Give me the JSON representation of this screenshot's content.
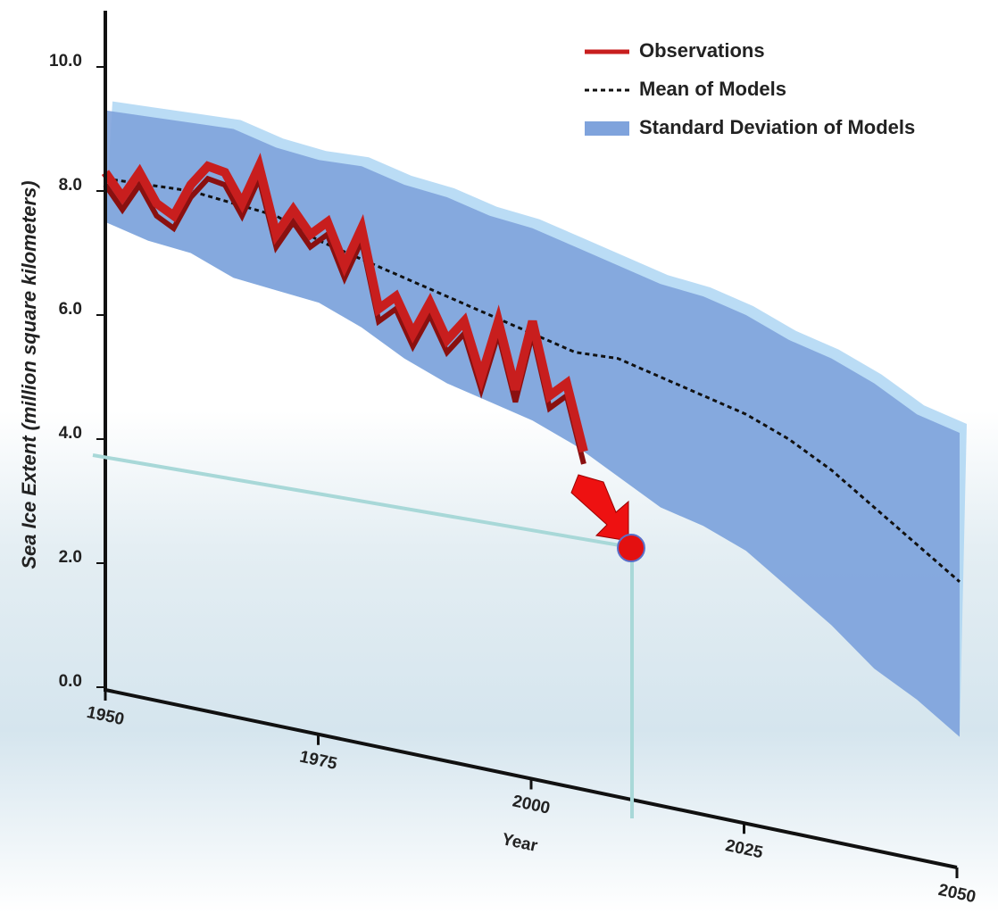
{
  "chart_data": {
    "type": "line",
    "ylabel": "Sea Ice Extent (million square kilometers)",
    "xlabel": "Year",
    "ylim": [
      0,
      10.5
    ],
    "yticks": [
      {
        "value": 0,
        "label": "0.0"
      },
      {
        "value": 2,
        "label": "2.0"
      },
      {
        "value": 4,
        "label": "4.0"
      },
      {
        "value": 6,
        "label": "6.0"
      },
      {
        "value": 8,
        "label": "8.0"
      },
      {
        "value": 10,
        "label": "10.0"
      }
    ],
    "xlim": [
      1950,
      2050
    ],
    "xticks": [
      1950,
      1975,
      2000,
      2025,
      2050
    ],
    "legend": "top-right",
    "series": [
      {
        "name": "Observations",
        "color": "#c81e1e",
        "style": "solid",
        "x": [
          1950,
          1952,
          1954,
          1956,
          1958,
          1960,
          1962,
          1964,
          1966,
          1968,
          1970,
          1972,
          1974,
          1976,
          1978,
          1980,
          1982,
          1984,
          1986,
          1988,
          1990,
          1992,
          1994,
          1996,
          1998,
          2000,
          2002,
          2004,
          2006
        ],
        "values": [
          8.3,
          7.9,
          8.3,
          7.8,
          7.6,
          8.1,
          8.4,
          8.3,
          7.8,
          8.4,
          7.3,
          7.7,
          7.3,
          7.5,
          6.8,
          7.4,
          6.1,
          6.3,
          5.7,
          6.2,
          5.6,
          5.9,
          5.0,
          5.9,
          4.8,
          5.9,
          4.7,
          4.9,
          3.8
        ]
      },
      {
        "name": "Mean of Models",
        "color": "#111111",
        "style": "dashed",
        "x": [
          1950,
          1955,
          1960,
          1965,
          1970,
          1975,
          1980,
          1985,
          1990,
          1995,
          2000,
          2005,
          2010,
          2015,
          2020,
          2025,
          2030,
          2035,
          2040,
          2045,
          2050
        ],
        "values": [
          8.2,
          8.1,
          8.0,
          7.8,
          7.6,
          7.2,
          6.9,
          6.6,
          6.3,
          6.0,
          5.7,
          5.4,
          5.3,
          5.0,
          4.7,
          4.4,
          4.0,
          3.5,
          2.9,
          2.3,
          1.7
        ]
      },
      {
        "name": "Standard Deviation of Models",
        "color": "#7fa3dc",
        "style": "band",
        "x": [
          1950,
          1955,
          1960,
          1965,
          1970,
          1975,
          1980,
          1985,
          1990,
          1995,
          2000,
          2005,
          2010,
          2015,
          2020,
          2025,
          2030,
          2035,
          2040,
          2045,
          2050
        ],
        "low": [
          7.5,
          7.2,
          7.0,
          6.6,
          6.4,
          6.2,
          5.8,
          5.3,
          4.9,
          4.6,
          4.3,
          3.9,
          3.4,
          2.9,
          2.6,
          2.2,
          1.6,
          1.0,
          0.3,
          -0.2,
          -0.8
        ],
        "high": [
          9.3,
          9.2,
          9.1,
          9.0,
          8.7,
          8.5,
          8.4,
          8.1,
          7.9,
          7.6,
          7.4,
          7.1,
          6.8,
          6.5,
          6.3,
          6.0,
          5.6,
          5.3,
          4.9,
          4.4,
          4.1
        ]
      }
    ]
  }
}
